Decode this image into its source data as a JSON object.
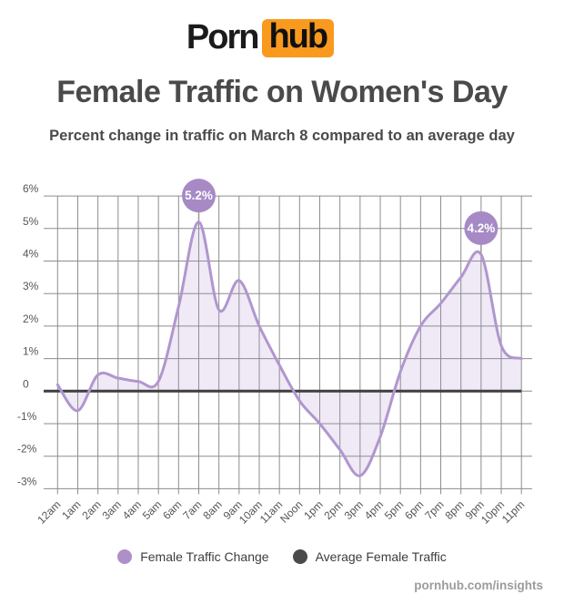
{
  "logo": {
    "text_black": "Porn",
    "text_box": "hub",
    "box_color": "#f9991d"
  },
  "header": {
    "title": "Female Traffic on Women's Day",
    "subtitle": "Percent change in traffic on March 8 compared to an average day"
  },
  "chart_data": {
    "type": "area",
    "title": "Female Traffic on Women's Day",
    "xlabel": "",
    "ylabel": "Percent change in traffic",
    "x": [
      "12am",
      "1am",
      "2am",
      "3am",
      "4am",
      "5am",
      "6am",
      "7am",
      "8am",
      "9am",
      "10am",
      "11am",
      "Noon",
      "1pm",
      "2pm",
      "3pm",
      "4pm",
      "5pm",
      "6pm",
      "7pm",
      "8pm",
      "9pm",
      "10pm",
      "11pm"
    ],
    "series": [
      {
        "name": "Female Traffic Change",
        "color": "#b096cf",
        "fill": "rgba(167,138,197,0.18)",
        "values": [
          0.2,
          -0.6,
          0.5,
          0.4,
          0.3,
          0.3,
          2.6,
          5.2,
          2.5,
          3.4,
          2.0,
          0.8,
          -0.3,
          -1.0,
          -1.8,
          -2.6,
          -1.4,
          0.6,
          2.0,
          2.7,
          3.5,
          4.2,
          1.4,
          1.0
        ]
      },
      {
        "name": "Average Female Traffic",
        "color": "#3f3f3f",
        "constant_value": 0
      }
    ],
    "annotations": [
      {
        "x": "7am",
        "value": 5.2,
        "label": "5.2%"
      },
      {
        "x": "9pm",
        "value": 4.2,
        "label": "4.2%"
      }
    ],
    "y_ticks": [
      {
        "label": "6%",
        "value": 6
      },
      {
        "label": "5%",
        "value": 5
      },
      {
        "label": "4%",
        "value": 4
      },
      {
        "label": "3%",
        "value": 3
      },
      {
        "label": "2%",
        "value": 2
      },
      {
        "label": "1%",
        "value": 1
      },
      {
        "label": "0",
        "value": 0
      },
      {
        "label": "-1%",
        "value": -1
      },
      {
        "label": "-2%",
        "value": -2
      },
      {
        "label": "-3%",
        "value": -3
      }
    ],
    "ylim": [
      -3,
      6
    ],
    "grid": true,
    "legend_position": "bottom",
    "colors": {
      "grid": "#8d8d8d",
      "axis_text": "#55555a",
      "bubble": "#a78ac5",
      "bubble_text": "#ffffff",
      "stem": "#999999"
    }
  },
  "legend": {
    "items": [
      {
        "label": "Female Traffic Change",
        "color": "#af8fc9"
      },
      {
        "label": "Average Female Traffic",
        "color": "#4a4a4a"
      }
    ]
  },
  "footer": {
    "text": "pornhub.com/insights"
  }
}
